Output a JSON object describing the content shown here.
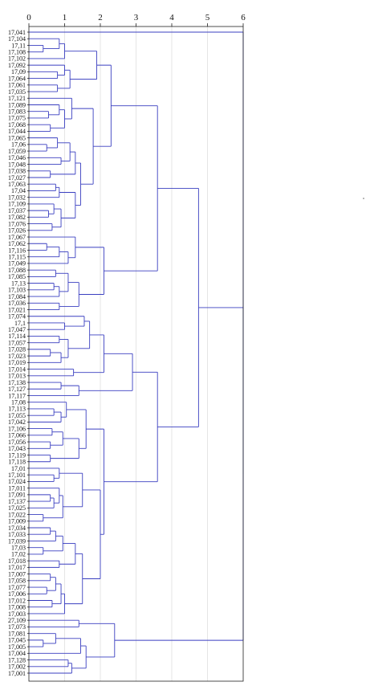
{
  "chart_data": {
    "type": "dendrogram",
    "orientation": "horizontal",
    "title": "",
    "xlabel": "",
    "ylabel": "",
    "xlim": [
      0,
      6
    ],
    "x_ticks": [
      "0",
      "1",
      "2",
      "3",
      "4",
      "5",
      "6"
    ],
    "grid": true,
    "leaves": [
      "17,041",
      "17,104",
      "17,11",
      "17,108",
      "17,102",
      "17,092",
      "17,09",
      "17,064",
      "17,061",
      "17,035",
      "17,121",
      "17,089",
      "17,083",
      "17,075",
      "17,068",
      "17,044",
      "17,065",
      "17,06",
      "17,059",
      "17,046",
      "17,048",
      "17,038",
      "17,027",
      "17,063",
      "17,04",
      "17,032",
      "17,109",
      "17,037",
      "17,082",
      "17,076",
      "17,026",
      "17,067",
      "17,062",
      "17,116",
      "17,115",
      "17,049",
      "17,088",
      "17,085",
      "17,13",
      "17,103",
      "17,084",
      "17,036",
      "17,021",
      "17,074",
      "17,1",
      "17,047",
      "17,114",
      "17,057",
      "17,028",
      "17,023",
      "17,019",
      "17,014",
      "17,013",
      "17,138",
      "17,127",
      "17,117",
      "17,08",
      "17,113",
      "17,055",
      "17,042",
      "17,106",
      "17,066",
      "17,056",
      "17,043",
      "17,119",
      "17,118",
      "17,01",
      "17,101",
      "17,024",
      "17,011",
      "17,091",
      "17,137",
      "17,025",
      "17,022",
      "17,009",
      "17,034",
      "17,033",
      "17,039",
      "17,03",
      "17,02",
      "17,018",
      "17,017",
      "17,007",
      "17,058",
      "17,077",
      "17,006",
      "17,012",
      "17,008",
      "17,003",
      "27,109",
      "17,073",
      "17,081",
      "17,045",
      "17,005",
      "17,004",
      "17,128",
      "17,002",
      "17,001"
    ],
    "merges": [
      {
        "a": 2,
        "b": 3,
        "h": 0.4
      },
      {
        "a": 1,
        "b": "m0",
        "h": 0.85
      },
      {
        "a": "m1",
        "b": 4,
        "h": 1.0
      },
      {
        "a": 6,
        "b": 7,
        "h": 0.8
      },
      {
        "a": 5,
        "b": "m3",
        "h": 1.0
      },
      {
        "a": 8,
        "b": 9,
        "h": 0.8
      },
      {
        "a": "m4",
        "b": "m5",
        "h": 1.15
      },
      {
        "a": "m2",
        "b": "m6",
        "h": 1.9
      },
      {
        "a": 12,
        "b": 13,
        "h": 0.55
      },
      {
        "a": 11,
        "b": "m8",
        "h": 0.85
      },
      {
        "a": 14,
        "b": 15,
        "h": 0.6
      },
      {
        "a": "m9",
        "b": "m10",
        "h": 1.0
      },
      {
        "a": 10,
        "b": "m11",
        "h": 1.2
      },
      {
        "a": 17,
        "b": 18,
        "h": 0.5
      },
      {
        "a": 16,
        "b": "m13",
        "h": 0.8
      },
      {
        "a": 19,
        "b": 20,
        "h": 0.9
      },
      {
        "a": "m14",
        "b": "m15",
        "h": 1.15
      },
      {
        "a": 21,
        "b": 22,
        "h": 0.6
      },
      {
        "a": "m16",
        "b": "m17",
        "h": 1.3
      },
      {
        "a": 23,
        "b": 24,
        "h": 0.75
      },
      {
        "a": "m19",
        "b": 25,
        "h": 0.85
      },
      {
        "a": 27,
        "b": 28,
        "h": 0.55
      },
      {
        "a": 26,
        "b": "m21",
        "h": 0.7
      },
      {
        "a": 29,
        "b": 30,
        "h": 0.65
      },
      {
        "a": "m22",
        "b": "m23",
        "h": 0.9
      },
      {
        "a": "m20",
        "b": "m24",
        "h": 1.3
      },
      {
        "a": "m18",
        "b": "m25",
        "h": 1.45
      },
      {
        "a": "m12",
        "b": "m26",
        "h": 1.8
      },
      {
        "a": "m7",
        "b": "m27",
        "h": 2.3
      },
      {
        "a": 32,
        "b": 33,
        "h": 0.5
      },
      {
        "a": "m29",
        "b": 34,
        "h": 0.85
      },
      {
        "a": "m30",
        "b": 35,
        "h": 1.1
      },
      {
        "a": 31,
        "b": "m31",
        "h": 1.3
      },
      {
        "a": 36,
        "b": 37,
        "h": 0.75
      },
      {
        "a": 38,
        "b": 39,
        "h": 0.7
      },
      {
        "a": "m34",
        "b": 40,
        "h": 0.85
      },
      {
        "a": "m33",
        "b": "m35",
        "h": 1.1
      },
      {
        "a": 41,
        "b": 42,
        "h": 0.85
      },
      {
        "a": "m36",
        "b": "m37",
        "h": 1.4
      },
      {
        "a": "m32",
        "b": "m38",
        "h": 2.1
      },
      {
        "a": "m28",
        "b": "m39",
        "h": 3.6
      },
      {
        "a": 44,
        "b": 45,
        "h": 1.0
      },
      {
        "a": 43,
        "b": "m41",
        "h": 1.55
      },
      {
        "a": 46,
        "b": 47,
        "h": 0.85
      },
      {
        "a": 48,
        "b": 49,
        "h": 0.6
      },
      {
        "a": "m44",
        "b": 50,
        "h": 0.9
      },
      {
        "a": "m43",
        "b": "m45",
        "h": 1.1
      },
      {
        "a": "m42",
        "b": "m46",
        "h": 1.7
      },
      {
        "a": 51,
        "b": 52,
        "h": 1.25
      },
      {
        "a": "m47",
        "b": "m48",
        "h": 2.1
      },
      {
        "a": 53,
        "b": 54,
        "h": 0.9
      },
      {
        "a": "m50",
        "b": 55,
        "h": 1.4
      },
      {
        "a": "m49",
        "b": "m51",
        "h": 2.9
      },
      {
        "a": 57,
        "b": 58,
        "h": 0.7
      },
      {
        "a": "m53",
        "b": 59,
        "h": 0.9
      },
      {
        "a": 56,
        "b": "m54",
        "h": 1.05
      },
      {
        "a": 60,
        "b": 61,
        "h": 0.65
      },
      {
        "a": 62,
        "b": 63,
        "h": 0.6
      },
      {
        "a": "m56",
        "b": "m57",
        "h": 0.95
      },
      {
        "a": 64,
        "b": 65,
        "h": 0.6
      },
      {
        "a": "m58",
        "b": "m59",
        "h": 1.4
      },
      {
        "a": "m55",
        "b": "m60",
        "h": 1.6
      },
      {
        "a": 67,
        "b": 68,
        "h": 0.7
      },
      {
        "a": 66,
        "b": "m62",
        "h": 0.85
      },
      {
        "a": 70,
        "b": 71,
        "h": 0.6
      },
      {
        "a": "m64",
        "b": 72,
        "h": 0.7
      },
      {
        "a": 69,
        "b": "m65",
        "h": 0.85
      },
      {
        "a": 73,
        "b": 74,
        "h": 0.4
      },
      {
        "a": "m66",
        "b": "m67",
        "h": 0.95
      },
      {
        "a": "m63",
        "b": "m68",
        "h": 1.5
      },
      {
        "a": 75,
        "b": 76,
        "h": 0.6
      },
      {
        "a": "m70",
        "b": 77,
        "h": 0.75
      },
      {
        "a": 78,
        "b": 79,
        "h": 0.4
      },
      {
        "a": "m71",
        "b": "m72",
        "h": 0.95
      },
      {
        "a": 80,
        "b": 81,
        "h": 0.85
      },
      {
        "a": "m73",
        "b": "m74",
        "h": 1.3
      },
      {
        "a": 82,
        "b": 83,
        "h": 0.6
      },
      {
        "a": 84,
        "b": 85,
        "h": 0.5
      },
      {
        "a": "m76",
        "b": "m77",
        "h": 0.75
      },
      {
        "a": 86,
        "b": 87,
        "h": 0.65
      },
      {
        "a": "m78",
        "b": "m79",
        "h": 0.9
      },
      {
        "a": "m80",
        "b": 88,
        "h": 1.0
      },
      {
        "a": "m75",
        "b": "m81",
        "h": 1.5
      },
      {
        "a": "m69",
        "b": "m82",
        "h": 2.0
      },
      {
        "a": "m61",
        "b": "m83",
        "h": 2.1
      },
      {
        "a": "m52",
        "b": "m84",
        "h": 3.6
      },
      {
        "a": "m40",
        "b": "m85",
        "h": 4.75
      },
      {
        "a": 89,
        "b": 90,
        "h": 1.4
      },
      {
        "a": 92,
        "b": 93,
        "h": 0.4
      },
      {
        "a": 91,
        "b": "m88",
        "h": 0.75
      },
      {
        "a": "m89",
        "b": 94,
        "h": 1.45
      },
      {
        "a": 95,
        "b": 96,
        "h": 1.1
      },
      {
        "a": "m91",
        "b": 97,
        "h": 1.2
      },
      {
        "a": "m90",
        "b": "m92",
        "h": 1.6
      },
      {
        "a": "m87",
        "b": "m93",
        "h": 2.4
      },
      {
        "a": "m86",
        "b": "m94",
        "h": 6.0
      },
      {
        "a": 0,
        "b": "m95",
        "h": 6.0
      }
    ]
  }
}
